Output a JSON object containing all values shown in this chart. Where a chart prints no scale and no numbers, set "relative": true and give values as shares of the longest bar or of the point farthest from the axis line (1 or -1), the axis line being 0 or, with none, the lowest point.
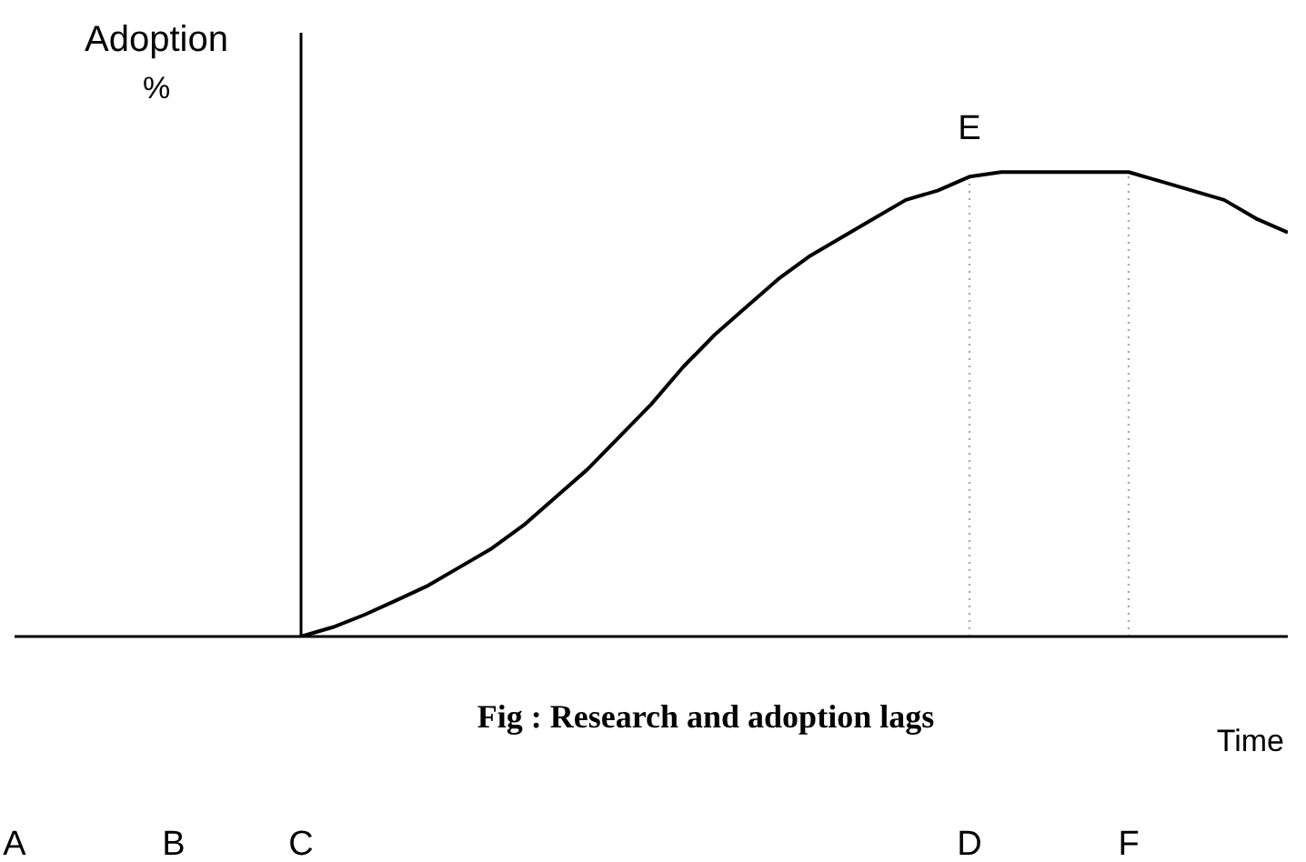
{
  "chart_data": {
    "type": "line",
    "relative": true,
    "ylabel": "Adoption %",
    "xlabel": "Time",
    "annotations": [
      "Fig : Research and adoption lags",
      {
        "text": "E",
        "x": "D",
        "y": 1
      }
    ],
    "categories": [
      "A",
      null,
      null,
      null,
      null,
      "B",
      null,
      null,
      null,
      "C",
      null,
      null,
      null,
      null,
      null,
      null,
      null,
      null,
      null,
      null,
      null,
      null,
      null,
      null,
      null,
      null,
      null,
      null,
      null,
      null,
      "D",
      null,
      null,
      null,
      null,
      "F",
      null,
      null,
      null,
      null,
      null
    ],
    "series": [
      {
        "color": "#000000",
        "values": [
          null,
          null,
          null,
          null,
          null,
          null,
          null,
          null,
          null,
          0,
          0.02,
          0.047,
          0.078,
          0.11,
          0.15,
          0.19,
          0.24,
          0.3,
          0.36,
          0.43,
          0.5,
          0.58,
          0.65,
          0.71,
          0.77,
          0.82,
          0.86,
          0.9,
          0.94,
          0.96,
          0.99,
          1,
          1,
          1,
          1,
          1,
          0.98,
          0.96,
          0.94,
          0.9,
          0.87
        ]
      }
    ],
    "ref_lines": [
      {
        "axis": "x",
        "value": "C",
        "line_style": "solid",
        "color": "#000000"
      },
      {
        "axis": "x",
        "value": "D",
        "line_style": "dotted",
        "color": "#aaaaaa"
      },
      {
        "axis": "x",
        "value": "F",
        "line_style": "dotted",
        "color": "#aaaaaa"
      }
    ],
    "marker": "none",
    "line_style": "solid"
  }
}
